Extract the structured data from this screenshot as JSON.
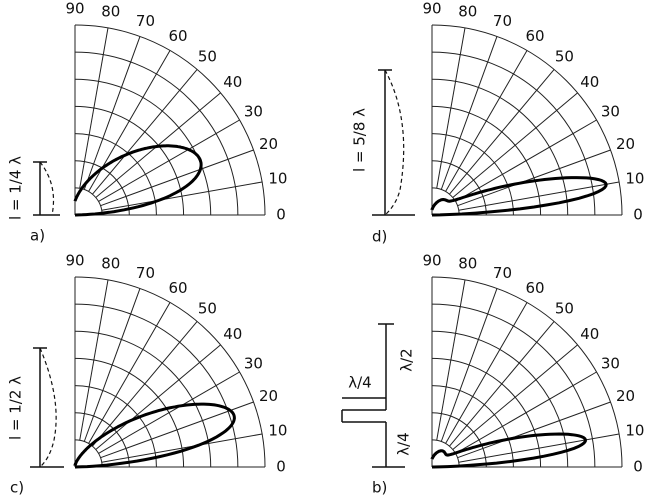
{
  "panels": [
    {
      "label": "a)",
      "length_label": "l = 1/4 λ",
      "angle_labels": [
        0,
        10,
        20,
        30,
        40,
        50,
        60,
        70,
        80,
        90
      ]
    },
    {
      "label": "d)",
      "length_label": "l = 5/8 λ",
      "angle_labels": [
        0,
        10,
        20,
        30,
        40,
        50,
        60,
        70,
        80,
        90
      ]
    },
    {
      "label": "c)",
      "length_label": "l = 1/2 λ",
      "angle_labels": [
        0,
        10,
        20,
        30,
        40,
        50,
        60,
        70,
        80,
        90
      ]
    },
    {
      "label": "b)",
      "feed_labels": [
        "λ/4",
        "λ/2",
        "λ/4"
      ],
      "angle_labels": [
        0,
        10,
        20,
        30,
        40,
        50,
        60,
        70,
        80,
        90
      ]
    }
  ]
}
